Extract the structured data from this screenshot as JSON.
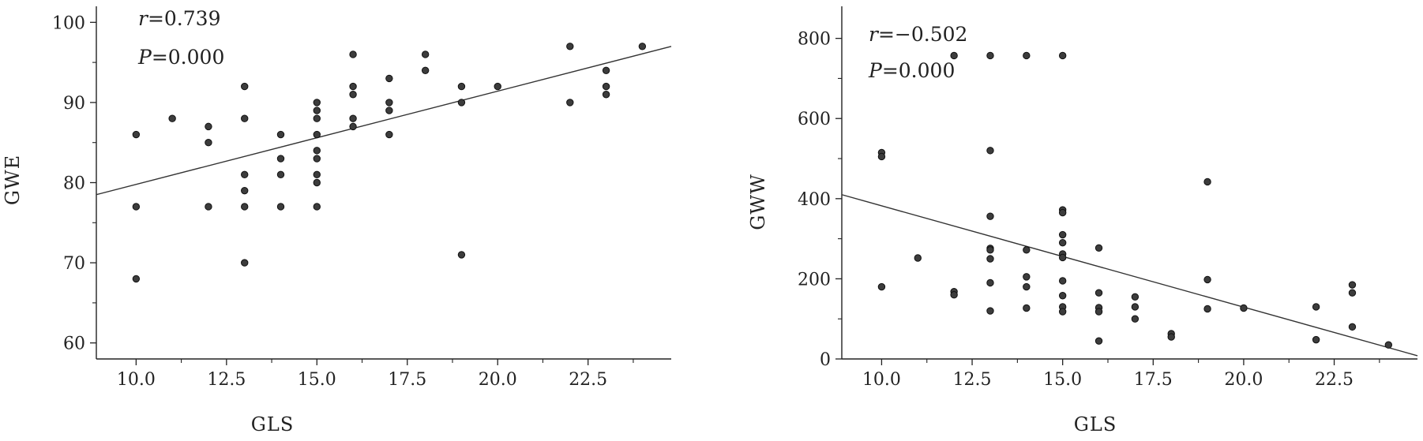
{
  "chart_data": [
    {
      "type": "scatter",
      "xlabel": "GLS",
      "ylabel": "GWE",
      "xlim": [
        8.9,
        24.8
      ],
      "ylim": [
        58,
        102
      ],
      "xticks": [
        "10.0",
        "12.5",
        "15.0",
        "17.5",
        "20.0",
        "22.5"
      ],
      "xtick_values": [
        10,
        12.5,
        15,
        17.5,
        20,
        22.5
      ],
      "yticks": [
        "60",
        "70",
        "80",
        "90",
        "100"
      ],
      "ytick_values": [
        60,
        70,
        80,
        90,
        100
      ],
      "annotations": {
        "r_symbol": "r",
        "r_value": "=0.739",
        "p_symbol": "P",
        "p_value": "=0.000"
      },
      "regression": {
        "x": [
          8.9,
          24.8
        ],
        "y": [
          78.5,
          97.0
        ]
      },
      "points": [
        [
          10,
          86
        ],
        [
          10,
          77
        ],
        [
          10,
          68
        ],
        [
          11,
          88
        ],
        [
          12,
          87
        ],
        [
          12,
          85
        ],
        [
          12,
          77
        ],
        [
          13,
          92
        ],
        [
          13,
          88
        ],
        [
          13,
          81
        ],
        [
          13,
          79
        ],
        [
          13,
          77
        ],
        [
          13,
          70
        ],
        [
          14,
          86
        ],
        [
          14,
          83
        ],
        [
          14,
          81
        ],
        [
          14,
          77
        ],
        [
          15,
          90
        ],
        [
          15,
          89
        ],
        [
          15,
          88
        ],
        [
          15,
          86
        ],
        [
          15,
          84
        ],
        [
          15,
          83
        ],
        [
          15,
          81
        ],
        [
          15,
          80
        ],
        [
          15,
          77
        ],
        [
          16,
          96
        ],
        [
          16,
          92
        ],
        [
          16,
          91
        ],
        [
          16,
          88
        ],
        [
          16,
          87
        ],
        [
          17,
          93
        ],
        [
          17,
          90
        ],
        [
          17,
          89
        ],
        [
          17,
          86
        ],
        [
          18,
          96
        ],
        [
          18,
          94
        ],
        [
          19,
          92
        ],
        [
          19,
          90
        ],
        [
          19,
          71
        ],
        [
          20,
          92
        ],
        [
          22,
          97
        ],
        [
          22,
          90
        ],
        [
          23,
          94
        ],
        [
          23,
          92
        ],
        [
          23,
          91
        ],
        [
          24,
          97
        ]
      ]
    },
    {
      "type": "scatter",
      "xlabel": "GLS",
      "ylabel": "GWW",
      "xlim": [
        8.9,
        24.8
      ],
      "ylim": [
        0,
        880
      ],
      "xticks": [
        "10.0",
        "12.5",
        "15.0",
        "17.5",
        "20.0",
        "22.5"
      ],
      "xtick_values": [
        10,
        12.5,
        15,
        17.5,
        20,
        22.5
      ],
      "yticks": [
        "0",
        "200",
        "400",
        "600",
        "800"
      ],
      "ytick_values": [
        0,
        200,
        400,
        600,
        800
      ],
      "annotations": {
        "r_symbol": "r",
        "r_value": "=−0.502",
        "p_symbol": "P",
        "p_value": "=0.000"
      },
      "regression": {
        "x": [
          8.9,
          24.8
        ],
        "y": [
          410,
          8
        ]
      },
      "points": [
        [
          10,
          515
        ],
        [
          10,
          505
        ],
        [
          10,
          180
        ],
        [
          11,
          252
        ],
        [
          12,
          757
        ],
        [
          12,
          168
        ],
        [
          12,
          160
        ],
        [
          13,
          757
        ],
        [
          13,
          520
        ],
        [
          13,
          356
        ],
        [
          13,
          276
        ],
        [
          13,
          272
        ],
        [
          13,
          250
        ],
        [
          13,
          190
        ],
        [
          13,
          120
        ],
        [
          14,
          757
        ],
        [
          14,
          272
        ],
        [
          14,
          205
        ],
        [
          14,
          180
        ],
        [
          14,
          127
        ],
        [
          15,
          757
        ],
        [
          15,
          372
        ],
        [
          15,
          365
        ],
        [
          15,
          310
        ],
        [
          15,
          290
        ],
        [
          15,
          262
        ],
        [
          15,
          253
        ],
        [
          15,
          195
        ],
        [
          15,
          158
        ],
        [
          15,
          130
        ],
        [
          15,
          118
        ],
        [
          16,
          277
        ],
        [
          16,
          165
        ],
        [
          16,
          128
        ],
        [
          16,
          118
        ],
        [
          16,
          45
        ],
        [
          17,
          155
        ],
        [
          17,
          130
        ],
        [
          17,
          100
        ],
        [
          18,
          63
        ],
        [
          18,
          55
        ],
        [
          19,
          442
        ],
        [
          19,
          198
        ],
        [
          19,
          125
        ],
        [
          20,
          127
        ],
        [
          22,
          130
        ],
        [
          22,
          48
        ],
        [
          23,
          185
        ],
        [
          23,
          165
        ],
        [
          23,
          80
        ],
        [
          24,
          35
        ]
      ]
    }
  ]
}
